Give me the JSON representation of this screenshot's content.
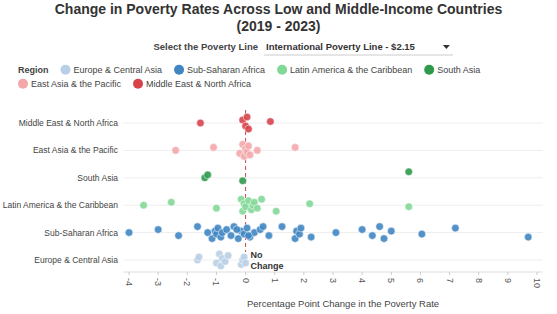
{
  "chart_data": {
    "type": "scatter",
    "title": "Change in Poverty Rates Across Low and Middle-Income Countries",
    "subtitle": "(2019 - 2023)",
    "selector_label": "Select the Poverty Line",
    "selector_value": "International Poverty Line - $2.15",
    "legend_title": "Region",
    "x_label": "Percentage Point Change in the Poverty Rate",
    "annotation": {
      "text": "No Change",
      "x": 0
    },
    "xlim": [
      -4.2,
      10.2
    ],
    "xticks": [
      -4,
      -3,
      -2,
      -1,
      0,
      1,
      2,
      3,
      4,
      5,
      6,
      7,
      8,
      9,
      10
    ],
    "grid": true,
    "series": [
      {
        "name": "Europe & Central Asia",
        "color": "#b9cfe6",
        "values": [
          -1.65,
          -1.6,
          -1.0,
          -0.9,
          -0.85,
          -0.8,
          -0.7,
          -0.6,
          -0.15,
          -0.1,
          -0.05,
          0.0
        ]
      },
      {
        "name": "Sub-Saharan Africa",
        "color": "#3f86c2",
        "values": [
          -4.0,
          -3.0,
          -2.3,
          -1.65,
          -1.15,
          -1.05,
          -1.0,
          -0.95,
          -0.85,
          -0.8,
          -0.65,
          -0.5,
          -0.4,
          -0.25,
          -0.15,
          -0.05,
          0.05,
          0.15,
          0.3,
          0.5,
          0.8,
          1.25,
          1.7,
          1.75,
          1.85,
          1.9,
          2.25,
          3.1,
          4.0,
          4.35,
          4.6,
          4.75,
          5.0,
          6.05,
          7.2,
          9.7,
          -1.3,
          -0.3,
          0.1,
          0.6
        ]
      },
      {
        "name": "Latin America & the Caribbean",
        "color": "#83d898",
        "values": [
          -3.5,
          -2.55,
          -1.0,
          -0.15,
          -0.1,
          -0.05,
          0.0,
          0.1,
          0.2,
          0.25,
          0.3,
          0.4,
          0.55,
          1.05,
          2.2,
          5.6
        ]
      },
      {
        "name": "South Asia",
        "color": "#2f9a4c",
        "values": [
          -1.4,
          -1.3,
          -0.1,
          5.6
        ]
      },
      {
        "name": "East Asia & the Pacific",
        "color": "#f3a7ab",
        "values": [
          -2.4,
          -1.1,
          -0.2,
          -0.1,
          -0.05,
          0.0,
          0.05,
          0.1,
          0.15,
          0.4,
          1.7
        ]
      },
      {
        "name": "Middle East & North Africa",
        "color": "#d6434b",
        "values": [
          -1.55,
          -0.1,
          0.0,
          0.05,
          0.1,
          0.85
        ]
      }
    ]
  }
}
